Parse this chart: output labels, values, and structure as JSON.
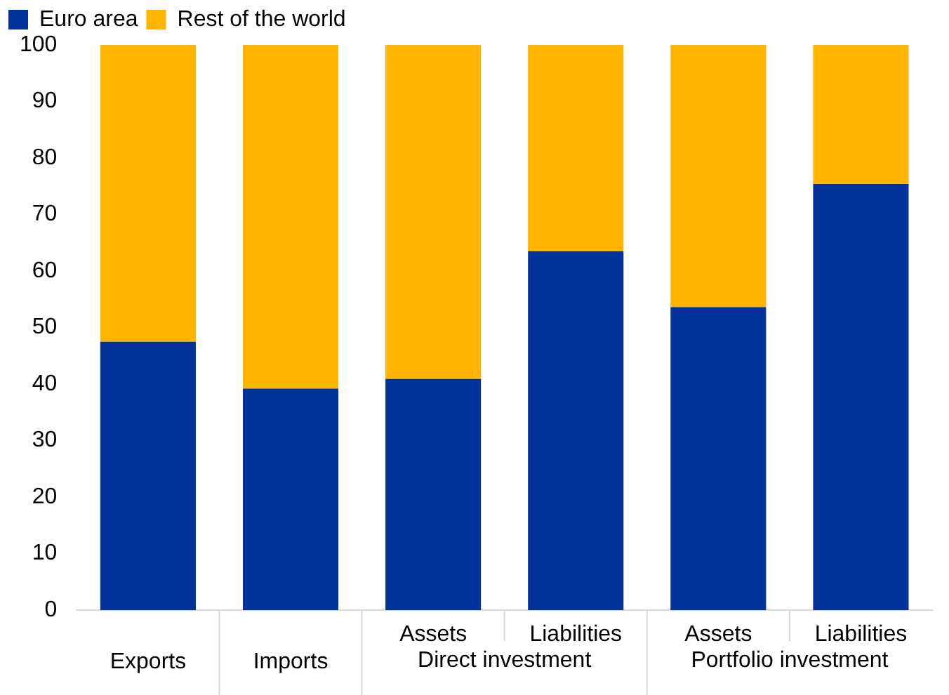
{
  "chart_data": {
    "type": "bar",
    "stacked": true,
    "categories": [
      "Exports",
      "Imports",
      "Assets",
      "Liabilities",
      "Assets",
      "Liabilities"
    ],
    "series": [
      {
        "name": "Euro area",
        "color": "#003299",
        "values": [
          47.5,
          39.2,
          40.9,
          63.5,
          53.6,
          75.4
        ]
      },
      {
        "name": "Rest of the world",
        "color": "#ffb400",
        "values": [
          52.5,
          60.8,
          59.1,
          36.5,
          46.4,
          24.6
        ]
      }
    ],
    "ylim": [
      0,
      100
    ],
    "yticks": [
      0,
      10,
      20,
      30,
      40,
      50,
      60,
      70,
      80,
      90,
      100
    ],
    "grid": false,
    "legend": "top left",
    "annotations": [
      "Direct investment",
      "Portfolio investment"
    ]
  }
}
